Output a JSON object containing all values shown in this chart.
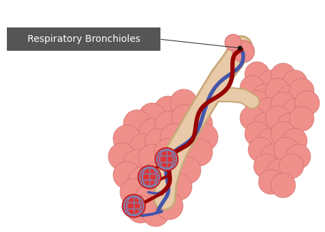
{
  "bg_color": "#ffffff",
  "label_box_color": "#555555",
  "label_text": "Respiratory Bronchioles",
  "label_text_color": "#ffffff",
  "label_fontsize": 10,
  "alveoli_color": "#f0908a",
  "alveoli_edge": "#d07070",
  "bronchiole_fill": "#e8c9a8",
  "bronchiole_edge": "#c8a878",
  "blood_vessel_red": "#990000",
  "blood_vessel_blue": "#4455aa",
  "capillary_color": "#7788bb",
  "dot_color": "#111111",
  "line_color": "#333333",
  "alveoli_shadow": "#cc7070"
}
